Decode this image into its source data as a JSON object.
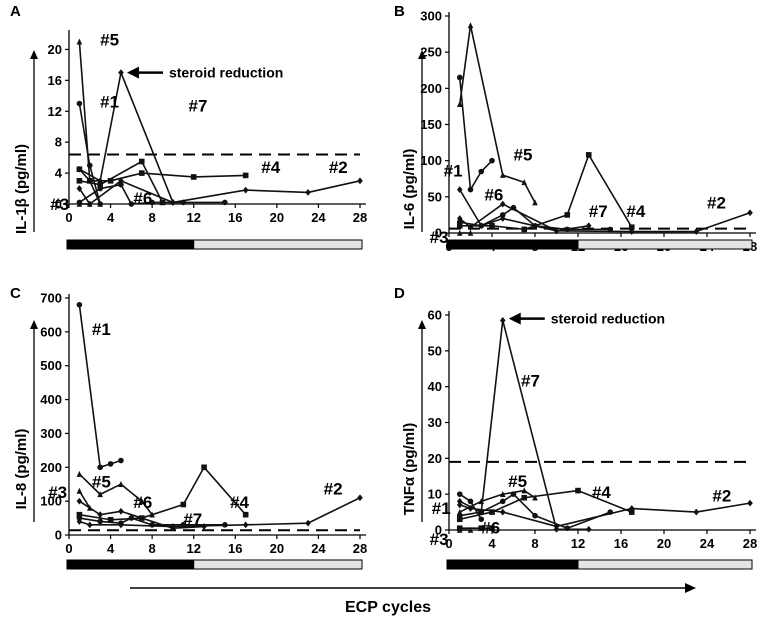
{
  "figure": {
    "xlabel": "ECP cycles"
  },
  "chart_data": [
    {
      "type": "line",
      "panel": "A",
      "ylabel": "IL-1β (pg/ml)",
      "ylim": [
        0,
        22
      ],
      "yticks": [
        0,
        4,
        8,
        12,
        16,
        20
      ],
      "xlim": [
        0,
        28
      ],
      "xticks": [
        0,
        4,
        8,
        12,
        16,
        20,
        24,
        28
      ],
      "threshold": 6.4,
      "annotation": {
        "text": "steroid reduction",
        "x": 5,
        "y": 17
      },
      "series": [
        {
          "name": "#1",
          "x": [
            1,
            2,
            3
          ],
          "y": [
            13,
            5,
            0
          ]
        },
        {
          "name": "#2",
          "x": [
            1,
            2,
            5,
            10,
            17,
            23,
            28
          ],
          "y": [
            2,
            0,
            3,
            0.2,
            1.8,
            1.5,
            3
          ]
        },
        {
          "name": "#3",
          "x": [
            1,
            2
          ],
          "y": [
            0,
            0
          ]
        },
        {
          "name": "#4",
          "x": [
            1,
            2,
            4,
            7,
            12,
            17
          ],
          "y": [
            4.5,
            3,
            3,
            4,
            3.5,
            3.7
          ]
        },
        {
          "name": "#5",
          "x": [
            1,
            2,
            3
          ],
          "y": [
            21,
            3,
            0
          ]
        },
        {
          "name": "#6",
          "x": [
            1,
            3,
            5,
            6,
            8,
            11,
            15
          ],
          "y": [
            0.2,
            2,
            2.5,
            0,
            0.2,
            0.2,
            0.2
          ]
        },
        {
          "name": "#7",
          "x": [
            1,
            3,
            5,
            10
          ],
          "y": [
            4.5,
            3,
            17,
            0.2
          ]
        },
        {
          "name": "",
          "x": [
            1,
            3,
            7,
            9
          ],
          "y": [
            3,
            2.5,
            5.5,
            0.2
          ]
        }
      ],
      "labels": [
        {
          "text": "#5",
          "x": 3,
          "y": 20.5
        },
        {
          "text": "#1",
          "x": 3,
          "y": 12.5
        },
        {
          "text": "#7",
          "x": 11.5,
          "y": 12
        },
        {
          "text": "#4",
          "x": 18.5,
          "y": 4
        },
        {
          "text": "#2",
          "x": 25,
          "y": 4
        },
        {
          "text": "#6",
          "x": 6.2,
          "y": 0
        },
        {
          "text": "#3",
          "x": -1.8,
          "y": -0.8
        }
      ]
    },
    {
      "type": "line",
      "panel": "B",
      "ylabel": "IL-6 (pg/ml)",
      "ylim": [
        0,
        300
      ],
      "yticks": [
        0,
        50,
        100,
        150,
        200,
        250,
        300
      ],
      "xlim": [
        0,
        28
      ],
      "xticks": [
        0,
        4,
        8,
        12,
        16,
        20,
        24,
        28
      ],
      "threshold": 6,
      "series": [
        {
          "name": "#1",
          "x": [
            1,
            2,
            3,
            4
          ],
          "y": [
            215,
            60,
            85,
            100
          ]
        },
        {
          "name": "#2",
          "x": [
            1,
            2,
            5,
            10,
            17,
            23,
            28
          ],
          "y": [
            20,
            8,
            40,
            3,
            2,
            2,
            28
          ]
        },
        {
          "name": "#3",
          "x": [
            1,
            2
          ],
          "y": [
            0,
            0
          ]
        },
        {
          "name": "#4",
          "x": [
            1,
            4,
            7,
            11,
            13,
            17
          ],
          "y": [
            10,
            10,
            5,
            25,
            108,
            8
          ]
        },
        {
          "name": "#5",
          "x": [
            1,
            2,
            5,
            7,
            8
          ],
          "y": [
            178,
            287,
            80,
            70,
            42
          ]
        },
        {
          "name": "#6",
          "x": [
            1,
            3,
            5,
            6,
            8,
            11,
            15
          ],
          "y": [
            15,
            10,
            25,
            35,
            10,
            5,
            5
          ]
        },
        {
          "name": "#7",
          "x": [
            1,
            3,
            5,
            10,
            13
          ],
          "y": [
            60,
            10,
            20,
            3,
            10
          ]
        }
      ],
      "labels": [
        {
          "text": "#5",
          "x": 6,
          "y": 100
        },
        {
          "text": "#1",
          "x": -0.5,
          "y": 78
        },
        {
          "text": "#6",
          "x": 3.3,
          "y": 45
        },
        {
          "text": "#7",
          "x": 13,
          "y": 22
        },
        {
          "text": "#4",
          "x": 16.5,
          "y": 22
        },
        {
          "text": "#2",
          "x": 24,
          "y": 34
        },
        {
          "text": "#3",
          "x": -1.8,
          "y": -14
        }
      ]
    },
    {
      "type": "line",
      "panel": "C",
      "ylabel": "IL-8 (pg/ml)",
      "ylim": [
        0,
        700
      ],
      "yticks": [
        0,
        100,
        200,
        300,
        400,
        500,
        600,
        700
      ],
      "xlim": [
        0,
        28
      ],
      "xticks": [
        0,
        4,
        8,
        12,
        16,
        20,
        24,
        28
      ],
      "threshold": 14,
      "series": [
        {
          "name": "#1",
          "x": [
            1,
            3,
            4,
            5
          ],
          "y": [
            680,
            200,
            210,
            220
          ]
        },
        {
          "name": "#2",
          "x": [
            1,
            2,
            5,
            10,
            17,
            23,
            28
          ],
          "y": [
            40,
            30,
            30,
            25,
            30,
            35,
            110
          ]
        },
        {
          "name": "#3",
          "x": [
            1,
            2
          ],
          "y": [
            130,
            80
          ]
        },
        {
          "name": "#4",
          "x": [
            1,
            4,
            7,
            11,
            13,
            17
          ],
          "y": [
            60,
            45,
            50,
            90,
            200,
            60
          ]
        },
        {
          "name": "#5",
          "x": [
            1,
            3,
            5,
            7,
            8
          ],
          "y": [
            180,
            120,
            150,
            100,
            60
          ]
        },
        {
          "name": "#6",
          "x": [
            1,
            3,
            5,
            6,
            8,
            11,
            15
          ],
          "y": [
            50,
            40,
            35,
            50,
            30,
            30,
            30
          ]
        },
        {
          "name": "#7",
          "x": [
            1,
            3,
            5,
            10,
            13
          ],
          "y": [
            100,
            60,
            70,
            20,
            25
          ]
        }
      ],
      "labels": [
        {
          "text": "#1",
          "x": 2.2,
          "y": 590
        },
        {
          "text": "#5",
          "x": 2.2,
          "y": 140
        },
        {
          "text": "#3",
          "x": -2,
          "y": 110
        },
        {
          "text": "#6",
          "x": 6.2,
          "y": 80
        },
        {
          "text": "#7",
          "x": 11,
          "y": 30
        },
        {
          "text": "#4",
          "x": 15.5,
          "y": 80
        },
        {
          "text": "#2",
          "x": 24.5,
          "y": 120
        }
      ]
    },
    {
      "type": "line",
      "panel": "D",
      "ylabel": "TNFα (pg/ml)",
      "ylim": [
        0,
        60
      ],
      "yticks": [
        0,
        10,
        20,
        30,
        40,
        50,
        60
      ],
      "xlim": [
        0,
        28
      ],
      "xticks": [
        0,
        4,
        8,
        12,
        16,
        20,
        24,
        28
      ],
      "threshold": 19,
      "annotation": {
        "text": "steroid reduction",
        "x": 5,
        "y": 59
      },
      "series": [
        {
          "name": "#1",
          "x": [
            1,
            2,
            3
          ],
          "y": [
            10,
            8,
            3
          ]
        },
        {
          "name": "#2",
          "x": [
            1,
            2,
            5,
            10,
            17,
            23,
            28
          ],
          "y": [
            7,
            6,
            5,
            1,
            6,
            5,
            7.5
          ]
        },
        {
          "name": "#3",
          "x": [
            1,
            2
          ],
          "y": [
            0,
            0
          ]
        },
        {
          "name": "#4",
          "x": [
            1,
            4,
            7,
            12,
            17
          ],
          "y": [
            3,
            5,
            9,
            11,
            5
          ]
        },
        {
          "name": "#5",
          "x": [
            1,
            3,
            5,
            7,
            8
          ],
          "y": [
            5,
            8,
            10,
            11,
            9
          ]
        },
        {
          "name": "#6",
          "x": [
            1,
            3,
            5,
            6,
            8,
            11,
            15
          ],
          "y": [
            4,
            5,
            8,
            10,
            4,
            0.5,
            5
          ]
        },
        {
          "name": "#7",
          "x": [
            1,
            3,
            5,
            10,
            13
          ],
          "y": [
            8,
            5,
            58.5,
            0.2,
            0.2
          ]
        },
        {
          "name": "",
          "x": [
            1,
            3,
            4
          ],
          "y": [
            0.5,
            0.5,
            0.5
          ]
        }
      ],
      "labels": [
        {
          "text": "#7",
          "x": 6.7,
          "y": 40
        },
        {
          "text": "#5",
          "x": 5.5,
          "y": 12
        },
        {
          "text": "#4",
          "x": 13.3,
          "y": 9
        },
        {
          "text": "#2",
          "x": 24.5,
          "y": 8
        },
        {
          "text": "#1",
          "x": -1.6,
          "y": 4.5
        },
        {
          "text": "#6",
          "x": 3,
          "y": -1
        },
        {
          "text": "#3",
          "x": -1.8,
          "y": -4.2
        }
      ]
    }
  ]
}
